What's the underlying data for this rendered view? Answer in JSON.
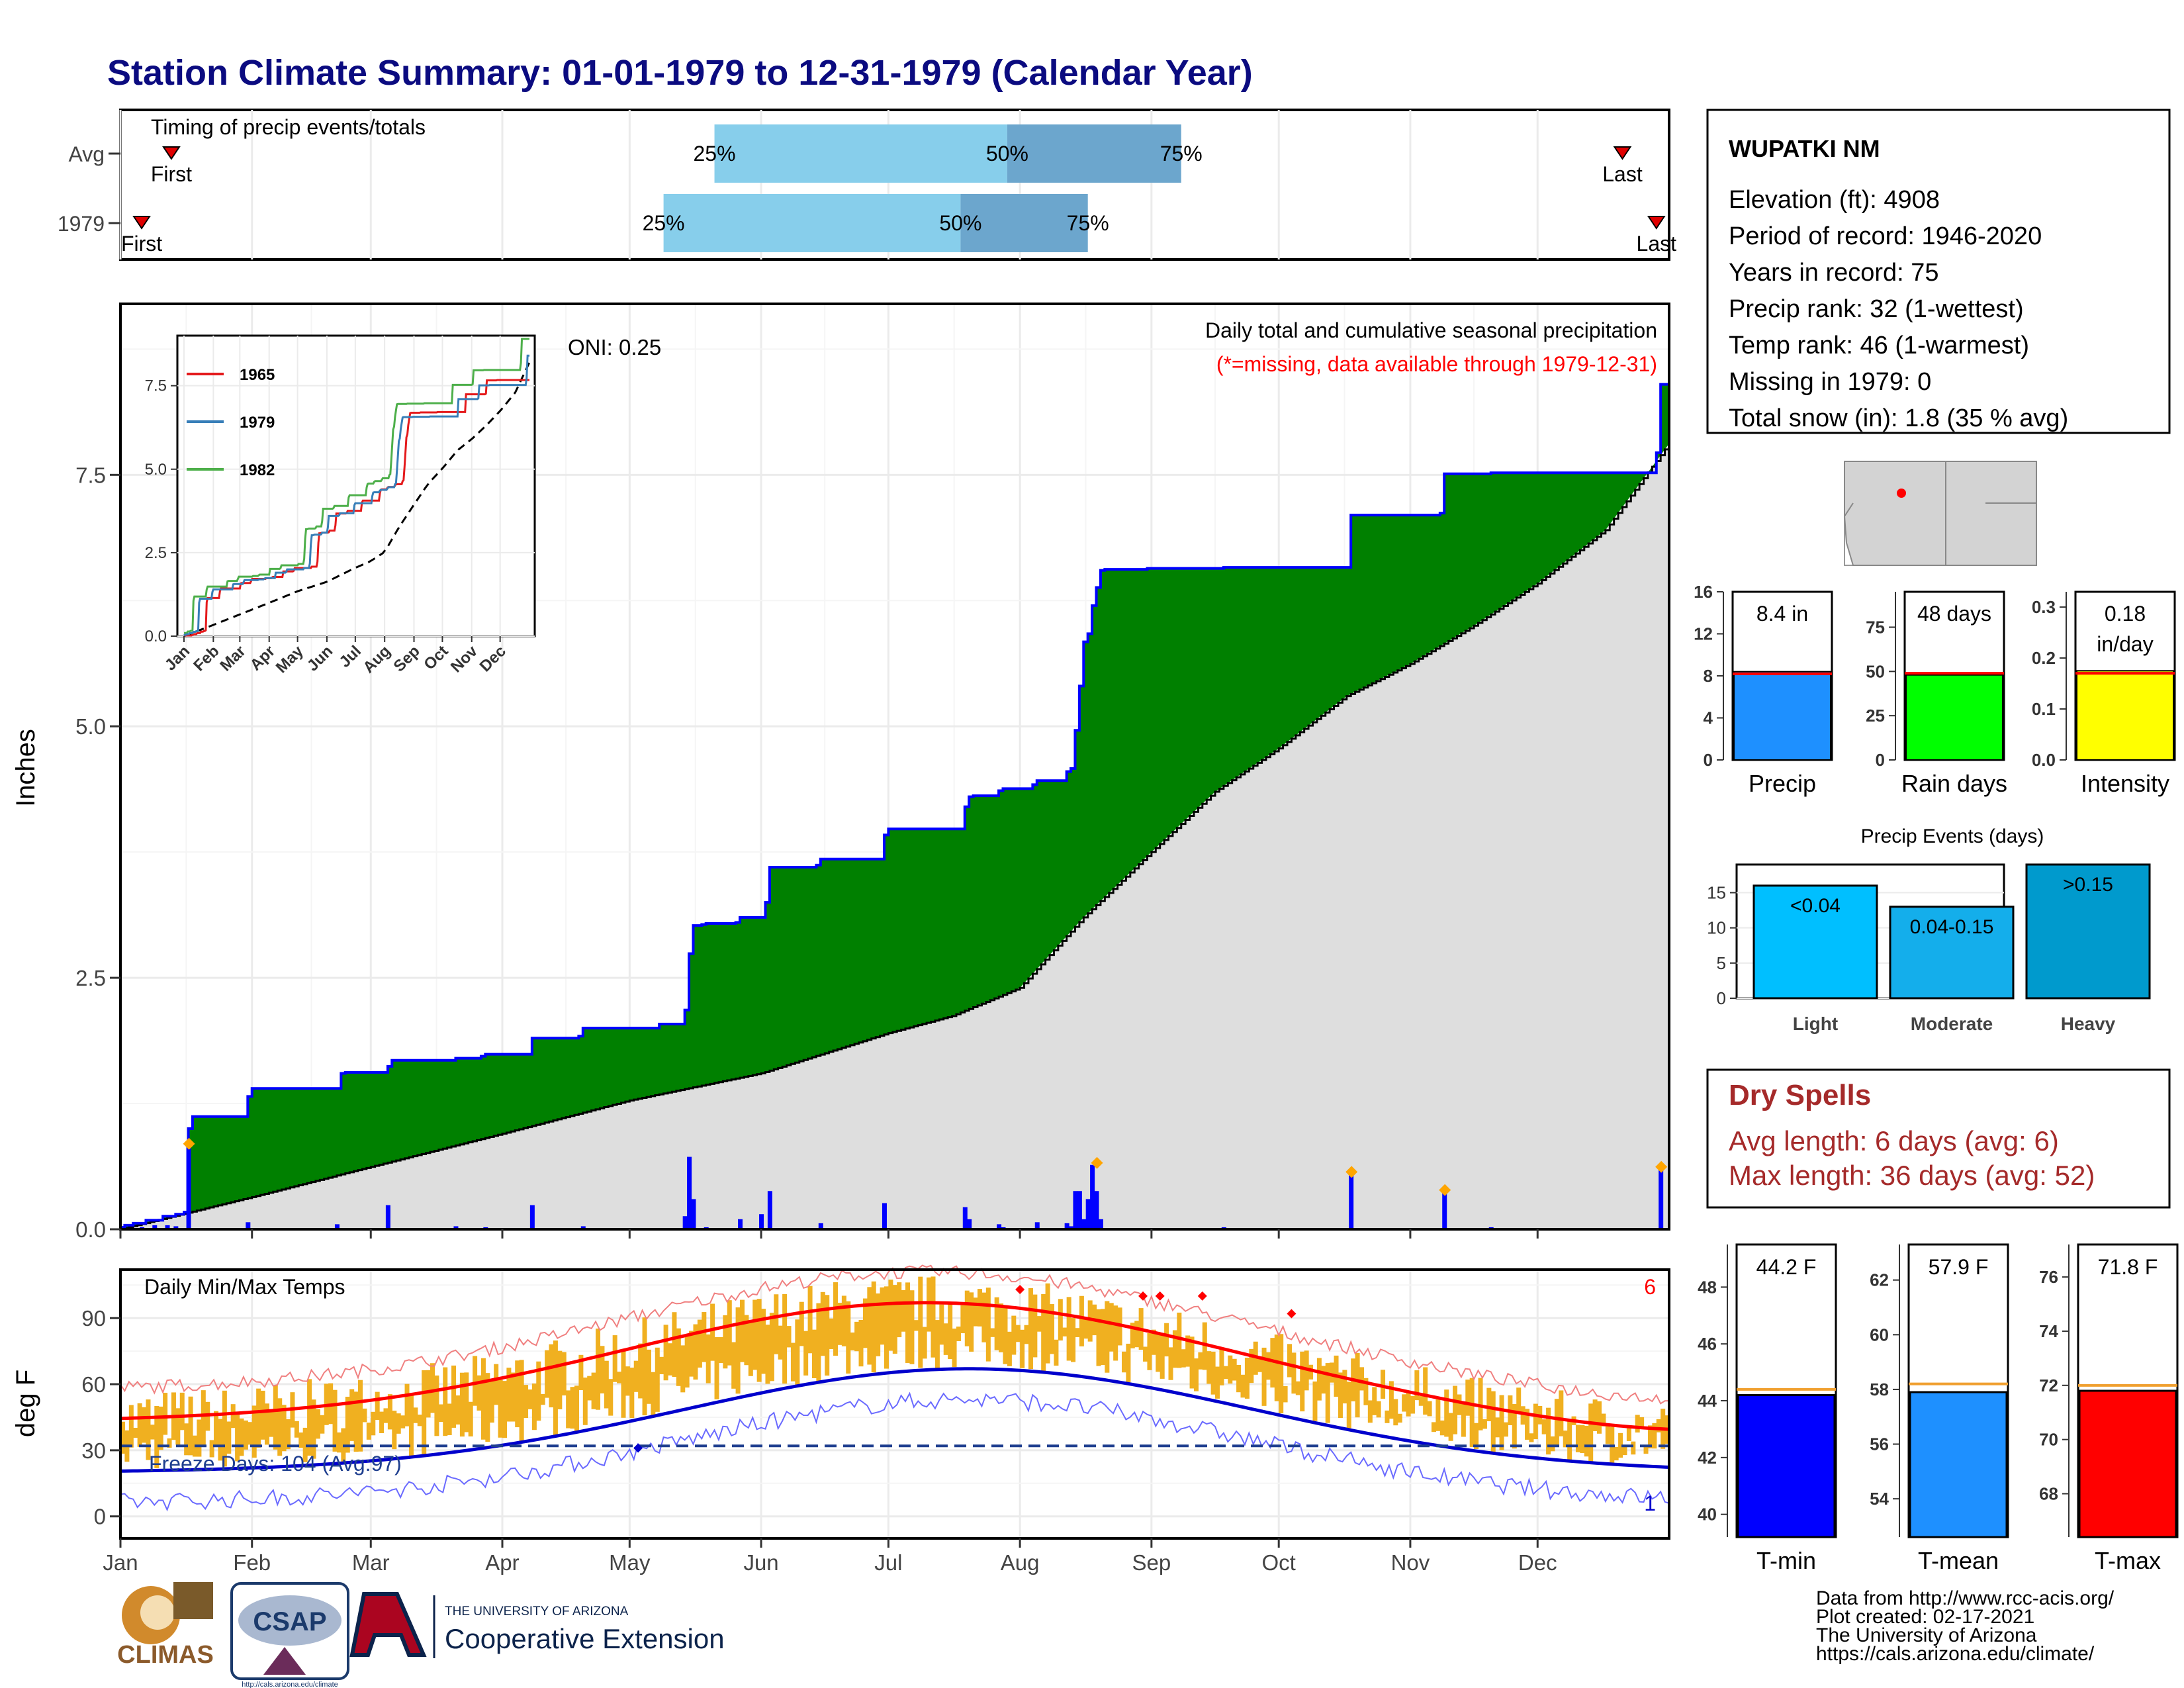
{
  "title": "Station Climate Summary: 01-01-1979 to 12-31-1979 (Calendar Year)",
  "colors": {
    "title": "#0B0B80",
    "cum_excess": "#008000",
    "normal_fill": "#DEDEDE",
    "precip_bar": "#0000FF",
    "tmax": "#FF0000",
    "tmin": "#0000CC",
    "temp_range": "#F0B020",
    "dry": "#A52A2A",
    "timing_light": "#87CEEB",
    "timing_dark": "#6CA6CD"
  },
  "timing": {
    "label": "Timing of precip events/totals",
    "rows": [
      {
        "name": "Avg",
        "first_label": "First",
        "last_label": "Last",
        "first_doy": 12,
        "last_doy": 354,
        "p25": 140,
        "p50": 209,
        "p75": 250
      },
      {
        "name": "1979",
        "first_label": "First",
        "last_label": "Last",
        "first_doy": 5,
        "last_doy": 362,
        "p25": 128,
        "p50": 198,
        "p75": 228
      }
    ],
    "labels": {
      "p25": "25%",
      "p50": "50%",
      "p75": "75%"
    }
  },
  "precip": {
    "ylabel": "Inches",
    "header": "Daily total and cumulative seasonal precipitation",
    "missing_note": "(*=missing, data available through 1979-12-31)",
    "oni": "ONI: 0.25",
    "yticks": [
      "0.0",
      "2.5",
      "5.0",
      "7.5"
    ],
    "ylim": [
      0,
      9.2
    ],
    "months": [
      "Jan",
      "Feb",
      "Mar",
      "Apr",
      "May",
      "Jun",
      "Jul",
      "Aug",
      "Sep",
      "Oct",
      "Nov",
      "Dec"
    ],
    "cumulative_steps": [
      [
        0,
        0.02
      ],
      [
        1,
        0.04
      ],
      [
        3,
        0.06
      ],
      [
        6,
        0.09
      ],
      [
        10,
        0.13
      ],
      [
        13,
        0.15
      ],
      [
        15,
        0.17
      ],
      [
        16,
        1.0
      ],
      [
        17,
        1.12
      ],
      [
        23,
        1.12
      ],
      [
        30,
        1.32
      ],
      [
        31,
        1.4
      ],
      [
        51,
        1.4
      ],
      [
        52,
        1.55
      ],
      [
        53,
        1.56
      ],
      [
        63,
        1.62
      ],
      [
        64,
        1.68
      ],
      [
        78,
        1.68
      ],
      [
        79,
        1.7
      ],
      [
        85,
        1.72
      ],
      [
        86,
        1.74
      ],
      [
        96,
        1.74
      ],
      [
        97,
        1.76
      ],
      [
        97,
        1.9
      ],
      [
        108,
        1.92
      ],
      [
        109,
        1.97
      ],
      [
        109,
        2.0
      ],
      [
        126,
        2.0
      ],
      [
        127,
        2.04
      ],
      [
        132,
        2.04
      ],
      [
        133,
        2.18
      ],
      [
        134,
        2.74
      ],
      [
        135,
        3.02
      ],
      [
        137,
        3.03
      ],
      [
        138,
        3.04
      ],
      [
        145,
        3.05
      ],
      [
        146,
        3.1
      ],
      [
        151,
        3.1
      ],
      [
        152,
        3.25
      ],
      [
        153,
        3.6
      ],
      [
        164,
        3.62
      ],
      [
        165,
        3.68
      ],
      [
        179,
        3.68
      ],
      [
        180,
        3.92
      ],
      [
        181,
        3.98
      ],
      [
        198,
        3.98
      ],
      [
        199,
        4.2
      ],
      [
        200,
        4.3
      ],
      [
        201,
        4.31
      ],
      [
        206,
        4.31
      ],
      [
        207,
        4.36
      ],
      [
        208,
        4.38
      ],
      [
        215,
        4.42
      ],
      [
        216,
        4.46
      ],
      [
        222,
        4.46
      ],
      [
        223,
        4.55
      ],
      [
        224,
        4.58
      ],
      [
        225,
        4.96
      ],
      [
        226,
        5.4
      ],
      [
        227,
        5.84
      ],
      [
        228,
        5.92
      ],
      [
        229,
        6.2
      ],
      [
        230,
        6.38
      ],
      [
        231,
        6.55
      ],
      [
        232,
        6.56
      ],
      [
        242,
        6.57
      ],
      [
        260,
        6.58
      ],
      [
        289,
        6.58
      ],
      [
        290,
        7.1
      ],
      [
        311,
        7.12
      ],
      [
        312,
        7.51
      ],
      [
        322,
        7.51
      ],
      [
        323,
        7.52
      ],
      [
        362,
        7.72
      ],
      [
        363,
        8.4
      ],
      [
        365,
        8.4
      ]
    ],
    "normal": [
      [
        0,
        0
      ],
      [
        31,
        0.32
      ],
      [
        59,
        0.62
      ],
      [
        90,
        0.95
      ],
      [
        120,
        1.28
      ],
      [
        151,
        1.55
      ],
      [
        181,
        1.95
      ],
      [
        196,
        2.12
      ],
      [
        212,
        2.4
      ],
      [
        227,
        3.1
      ],
      [
        243,
        3.75
      ],
      [
        258,
        4.35
      ],
      [
        273,
        4.78
      ],
      [
        289,
        5.3
      ],
      [
        304,
        5.62
      ],
      [
        319,
        6.0
      ],
      [
        334,
        6.42
      ],
      [
        350,
        6.95
      ],
      [
        365,
        7.81
      ]
    ],
    "daily": [
      [
        5,
        0.02
      ],
      [
        8,
        0.04
      ],
      [
        11,
        0.04
      ],
      [
        13,
        0.03
      ],
      [
        16,
        0.85
      ],
      [
        30,
        0.07
      ],
      [
        51,
        0.05
      ],
      [
        63,
        0.24
      ],
      [
        79,
        0.03
      ],
      [
        86,
        0.02
      ],
      [
        97,
        0.24
      ],
      [
        109,
        0.03
      ],
      [
        133,
        0.13
      ],
      [
        134,
        0.72
      ],
      [
        135,
        0.3
      ],
      [
        138,
        0.02
      ],
      [
        146,
        0.1
      ],
      [
        151,
        0.15
      ],
      [
        153,
        0.38
      ],
      [
        165,
        0.06
      ],
      [
        180,
        0.26
      ],
      [
        199,
        0.22
      ],
      [
        200,
        0.1
      ],
      [
        207,
        0.05
      ],
      [
        208,
        0.02
      ],
      [
        216,
        0.07
      ],
      [
        223,
        0.06
      ],
      [
        224,
        0.03
      ],
      [
        225,
        0.38
      ],
      [
        226,
        0.38
      ],
      [
        227,
        0.1
      ],
      [
        228,
        0.3
      ],
      [
        229,
        0.64
      ],
      [
        230,
        0.38
      ],
      [
        231,
        0.1
      ],
      [
        260,
        0.02
      ],
      [
        290,
        0.56
      ],
      [
        312,
        0.38
      ],
      [
        323,
        0.02
      ],
      [
        363,
        0.6
      ]
    ],
    "diamonds": [
      [
        16,
        0.85
      ],
      [
        230,
        0.66
      ],
      [
        290,
        0.57
      ],
      [
        312,
        0.39
      ],
      [
        363,
        0.62
      ]
    ],
    "inset": {
      "yticks": [
        "0.0",
        "2.5",
        "5.0",
        "7.5"
      ],
      "months": [
        "Jan",
        "Feb",
        "Mar",
        "Apr",
        "May",
        "Jun",
        "Jul",
        "Aug",
        "Sep",
        "Oct",
        "Nov",
        "Dec"
      ],
      "legend": [
        "1965",
        "1979",
        "1982"
      ],
      "colors": [
        "#E41A1C",
        "#377EB8",
        "#4DAF4A"
      ]
    }
  },
  "temps": {
    "ylabel": "deg F",
    "label": "Daily Min/Max Temps",
    "freeze_note": "Freeze Days: 104 (Avg:97)",
    "count_high": "6",
    "count_low": "1",
    "yticks": [
      "0",
      "30",
      "60",
      "90"
    ],
    "ylim": [
      -10,
      112
    ],
    "freeze_line": 32
  },
  "station": {
    "name": "WUPATKI NM",
    "lines": [
      "Elevation (ft): 4908",
      "Period of record: 1946-2020",
      "Years in record: 75",
      "Precip rank: 32 (1-wettest)",
      "Temp rank: 46 (1-warmest)",
      "Missing in 1979: 0",
      "Total snow (in): 1.8 (35 % avg)"
    ]
  },
  "mini_bars": [
    {
      "name": "Precip",
      "value_label": "8.4 in",
      "value": 8.4,
      "avg": 8.2,
      "ymax": 16,
      "ticks": [
        "0",
        "4",
        "8",
        "12",
        "16"
      ],
      "tickvals": [
        0,
        4,
        8,
        12,
        16
      ],
      "color": "#1E90FF"
    },
    {
      "name": "Rain days",
      "value_label": "48 days",
      "value": 48,
      "avg": 49,
      "ymax": 95,
      "ticks": [
        "0",
        "25",
        "50",
        "75"
      ],
      "tickvals": [
        0,
        25,
        50,
        75
      ],
      "color": "#00FF00"
    },
    {
      "name": "Intensity",
      "value_label": "0.18",
      "value_label2": "in/day",
      "value": 0.175,
      "avg": 0.17,
      "ymax": 0.33,
      "ticks": [
        "0.0",
        "0.1",
        "0.2",
        "0.3"
      ],
      "tickvals": [
        0,
        0.1,
        0.2,
        0.3
      ],
      "color": "#FFFF00"
    }
  ],
  "events": {
    "title": "Precip Events (days)",
    "ymax": 19,
    "ticks": [
      "0",
      "5",
      "10",
      "15"
    ],
    "tickvals": [
      0,
      5,
      10,
      15
    ],
    "bars": [
      {
        "category": "Light",
        "label": "<0.04",
        "value": 16,
        "color": "#00BFFF"
      },
      {
        "category": "Moderate",
        "label": "0.04-0.15",
        "value": 13,
        "color": "#14AEEB"
      },
      {
        "category": "Heavy",
        "label": ">0.15",
        "value": 19,
        "color": "#009ACD"
      }
    ]
  },
  "dry_spells": {
    "title": "Dry Spells",
    "avg_line": "Avg length: 6 days (avg: 6)",
    "max_line": "Max length: 36 days (avg: 52)"
  },
  "temp_bars": [
    {
      "name": "T-min",
      "value_label": "44.2 F",
      "value": 44.2,
      "avg": 44.4,
      "ymin": 39.2,
      "ymax": 49.5,
      "ticks": [
        "40",
        "42",
        "44",
        "46",
        "48"
      ],
      "tickvals": [
        40,
        42,
        44,
        46,
        48
      ],
      "color": "#0000FF"
    },
    {
      "name": "T-mean",
      "value_label": "57.9 F",
      "value": 57.9,
      "avg": 58.2,
      "ymin": 52.6,
      "ymax": 63.3,
      "ticks": [
        "54",
        "56",
        "58",
        "60",
        "62"
      ],
      "tickvals": [
        54,
        56,
        58,
        60,
        62
      ],
      "color": "#1E90FF"
    },
    {
      "name": "T-max",
      "value_label": "71.8 F",
      "value": 71.8,
      "avg": 72.0,
      "ymin": 66.4,
      "ymax": 77.2,
      "ticks": [
        "68",
        "70",
        "72",
        "74",
        "76"
      ],
      "tickvals": [
        68,
        70,
        72,
        74,
        76
      ],
      "color": "#FF0000"
    }
  ],
  "footer": {
    "lines": [
      "Data from http://www.rcc-acis.org/",
      "Plot created: 02-17-2021",
      "The University of Arizona",
      "https://cals.arizona.edu/climate/"
    ],
    "logo_climas": "CLIMAS",
    "logo_csap": "CSAP",
    "logo_csap_url": "http://cals.arizona.edu/climate",
    "logo_ua_small": "THE UNIVERSITY OF ARIZONA",
    "logo_ua_big": "Cooperative Extension"
  }
}
